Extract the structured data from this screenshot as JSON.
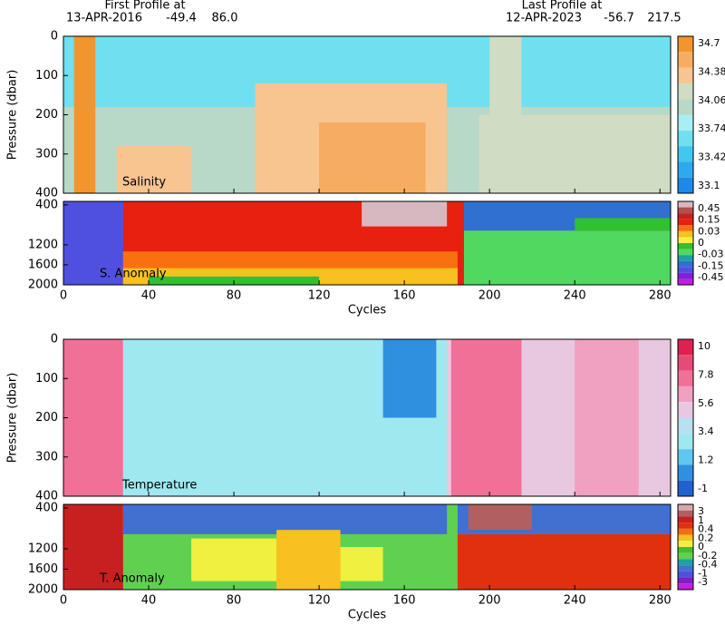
{
  "header": {
    "first_label": "First Profile at",
    "first_date": "13-APR-2016",
    "first_lat": "-49.4",
    "first_lon": "86.0",
    "last_label": "Last Profile at",
    "last_date": "12-APR-2023",
    "last_lat": "-56.7",
    "last_lon": "217.5"
  },
  "chart_data": [
    {
      "type": "contour",
      "label": "Salinity",
      "y_label": "Pressure (dbar)",
      "xlim": [
        0,
        285
      ],
      "xticks": [
        0,
        40,
        80,
        120,
        160,
        200,
        240,
        280
      ],
      "ylim": [
        0,
        400
      ],
      "yticks": [
        0,
        100,
        200,
        300,
        400
      ],
      "colorbar": {
        "ticks": [
          34.7,
          34.38,
          34.06,
          33.74,
          33.42,
          33.1
        ],
        "colors": [
          "#f2952e",
          "#f6ad62",
          "#f8c490",
          "#d0dcc4",
          "#b8d8c8",
          "#a8eef4",
          "#70e0f0",
          "#40c8f0",
          "#30a8ee",
          "#2088e8"
        ]
      }
    },
    {
      "type": "contour",
      "label": "S. Anomaly",
      "x_label": "Cycles",
      "xlim": [
        0,
        285
      ],
      "xticks": [
        0,
        40,
        80,
        120,
        160,
        200,
        240,
        280
      ],
      "ylim": [
        330,
        2000
      ],
      "yticks": [
        400,
        1200,
        1600,
        2000
      ],
      "colorbar": {
        "ticks": [
          0.45,
          0.15,
          0.03,
          0,
          -0.03,
          -0.15,
          -0.45
        ],
        "colors": [
          "#d8b8c0",
          "#b05050",
          "#c82020",
          "#e82010",
          "#f87010",
          "#f8c020",
          "#f8f040",
          "#30c030",
          "#50d860",
          "#20a0a0",
          "#3070d0",
          "#5050e0",
          "#8020d8",
          "#c020e0"
        ]
      }
    },
    {
      "type": "contour",
      "label": "Temperature",
      "y_label": "Pressure (dbar)",
      "xlim": [
        0,
        285
      ],
      "xticks": [
        0,
        40,
        80,
        120,
        160,
        200,
        240,
        280
      ],
      "ylim": [
        0,
        400
      ],
      "yticks": [
        0,
        100,
        200,
        300,
        400
      ],
      "colorbar": {
        "ticks": [
          10,
          7.8,
          5.6,
          3.4,
          1.2,
          -1
        ],
        "colors": [
          "#e02050",
          "#e84a78",
          "#f07098",
          "#f0a0c0",
          "#e8c8e0",
          "#b8e0f0",
          "#a0e8f0",
          "#60c8f0",
          "#3090e0",
          "#2060d0"
        ]
      }
    },
    {
      "type": "contour",
      "label": "T. Anomaly",
      "x_label": "Cycles",
      "xlim": [
        0,
        285
      ],
      "xticks": [
        0,
        40,
        80,
        120,
        160,
        200,
        240,
        280
      ],
      "ylim": [
        330,
        2000
      ],
      "yticks": [
        400,
        1200,
        1600,
        2000
      ],
      "colorbar": {
        "ticks": [
          3,
          1,
          0.4,
          0.2,
          0,
          -0.2,
          -0.4,
          -1,
          -3
        ],
        "colors": [
          "#d8a8b0",
          "#b06060",
          "#c82020",
          "#e03010",
          "#f07010",
          "#f8c020",
          "#f0f040",
          "#40c030",
          "#60d050",
          "#20a0a0",
          "#4070d0",
          "#5050e0",
          "#8020c0",
          "#c020e0"
        ]
      }
    }
  ]
}
